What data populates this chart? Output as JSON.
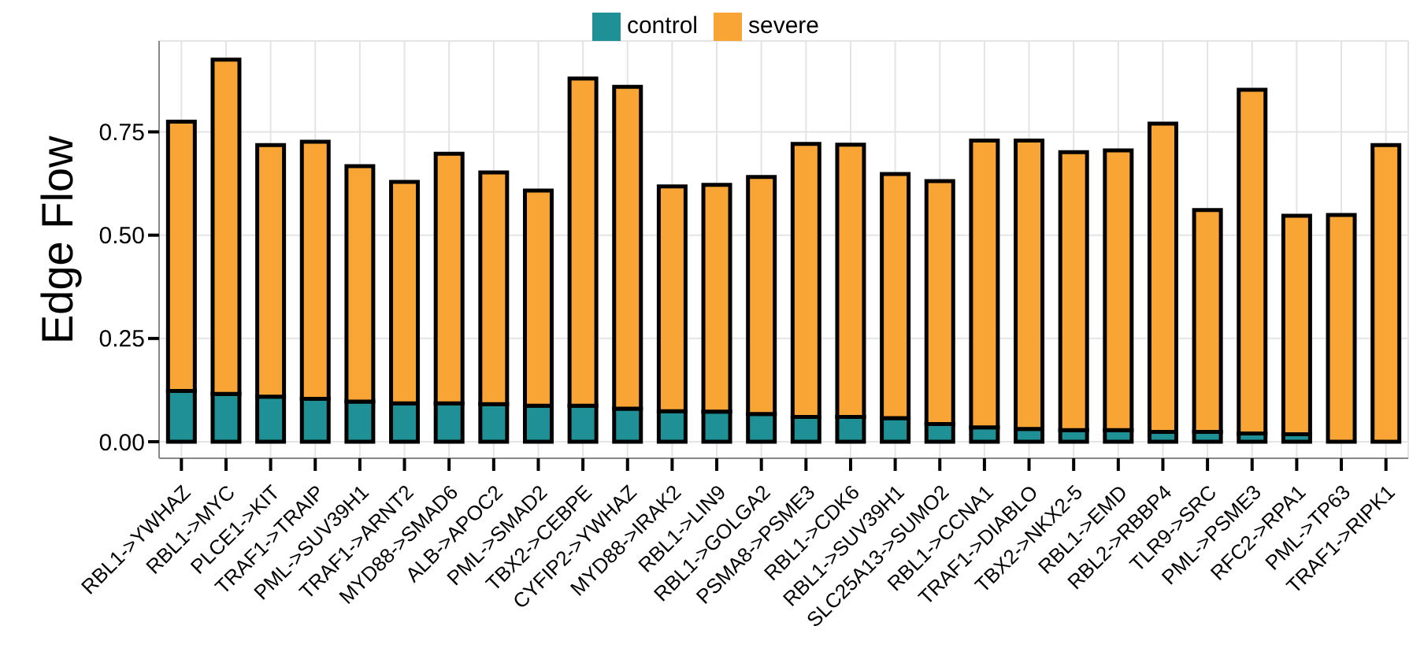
{
  "chart_data": {
    "type": "bar",
    "ylabel": "Edge Flow",
    "stacked": true,
    "grid": true,
    "legend": "top",
    "categories": [
      "RBL1->YWHAZ",
      "RBL1->MYC",
      "PLCE1->KIT",
      "TRAF1->TRAIP",
      "PML->SUV39H1",
      "TRAF1->ARNT2",
      "MYD88->SMAD6",
      "ALB->APOC2",
      "PML->SMAD2",
      "TBX2->CEBPE",
      "CYFIP2->YWHAZ",
      "MYD88->IRAK2",
      "RBL1->LIN9",
      "RBL1->GOLGA2",
      "PSMA8->PSME3",
      "RBL1->CDK6",
      "RBL1->SUV39H1",
      "SLC25A13->SUMO2",
      "RBL1->CCNA1",
      "TRAF1->DIABLO",
      "TBX2->NKX2-5",
      "RBL1->EMD",
      "RBL2->RBBP4",
      "TLR9->SRC",
      "PML->PSME3",
      "RFC2->RPA1",
      "PML->TP63",
      "TRAF1->RIPK1"
    ],
    "series": [
      {
        "name": "control",
        "color": "#1f9096",
        "values": [
          0.123,
          0.116,
          0.109,
          0.104,
          0.097,
          0.093,
          0.093,
          0.091,
          0.087,
          0.087,
          0.08,
          0.074,
          0.073,
          0.067,
          0.06,
          0.06,
          0.057,
          0.043,
          0.035,
          0.031,
          0.028,
          0.028,
          0.024,
          0.024,
          0.02,
          0.018,
          null,
          null
        ]
      },
      {
        "name": "severe",
        "color": "#f9a535",
        "values": [
          0.652,
          0.809,
          0.609,
          0.622,
          0.57,
          0.536,
          0.604,
          0.561,
          0.521,
          0.792,
          0.779,
          0.544,
          0.549,
          0.574,
          0.661,
          0.659,
          0.591,
          0.588,
          0.694,
          0.698,
          0.673,
          0.677,
          0.746,
          0.537,
          0.832,
          0.529,
          0.549,
          0.718
        ]
      }
    ],
    "ylim": [
      -0.04,
      0.97
    ],
    "yticks": [
      {
        "value": 0,
        "label": "0.00"
      },
      {
        "value": 0.25,
        "label": "0.25"
      },
      {
        "value": 0.5,
        "label": "0.50"
      },
      {
        "value": 0.75,
        "label": "0.75"
      }
    ]
  }
}
